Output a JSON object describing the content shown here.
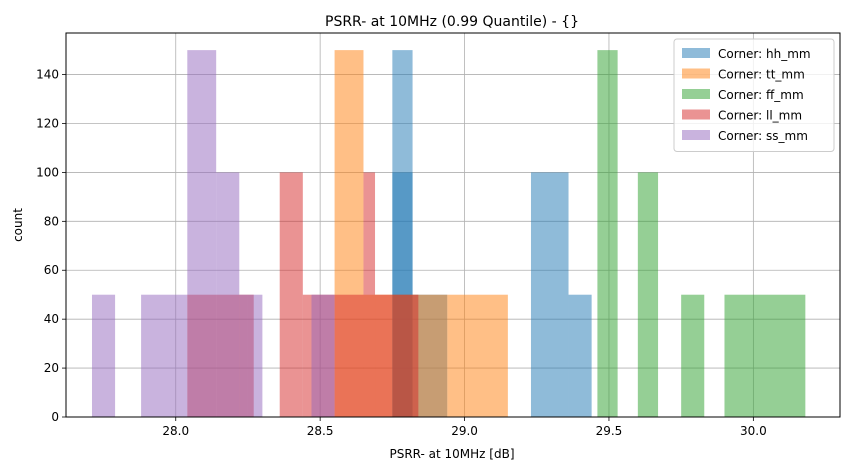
{
  "chart_data": {
    "type": "bar",
    "title": "PSRR- at 10MHz (0.99 Quantile) - {}",
    "xlabel": "PSRR- at 10MHz [dB]",
    "ylabel": "count",
    "xlim": [
      27.62,
      30.3
    ],
    "ylim": [
      0,
      157
    ],
    "xticks": [
      "28.0",
      "28.5",
      "29.0",
      "29.5",
      "30.0"
    ],
    "xtick_values": [
      28.0,
      28.5,
      29.0,
      29.5,
      30.0
    ],
    "yticks": [
      "0",
      "20",
      "40",
      "60",
      "80",
      "100",
      "120",
      "140"
    ],
    "ytick_values": [
      0,
      20,
      40,
      60,
      80,
      100,
      120,
      140
    ],
    "grid": true,
    "legend_position": "top-right",
    "series": [
      {
        "name": "Corner: hh_mm",
        "color": "#1f77b4",
        "bars": [
          {
            "x0": 28.75,
            "x1": 28.82,
            "y": 150
          },
          {
            "x0": 28.75,
            "x1": 28.82,
            "y": 100
          },
          {
            "x0": 28.75,
            "x1": 28.82,
            "y": 50
          },
          {
            "x0": 28.82,
            "x1": 28.94,
            "y": 50
          },
          {
            "x0": 29.23,
            "x1": 29.36,
            "y": 100
          },
          {
            "x0": 29.36,
            "x1": 29.44,
            "y": 50
          }
        ]
      },
      {
        "name": "Corner: tt_mm",
        "color": "#ff7f0e",
        "bars": [
          {
            "x0": 28.55,
            "x1": 28.65,
            "y": 150
          },
          {
            "x0": 28.65,
            "x1": 28.75,
            "y": 50
          },
          {
            "x0": 28.75,
            "x1": 28.94,
            "y": 50
          },
          {
            "x0": 28.94,
            "x1": 29.15,
            "y": 50
          }
        ]
      },
      {
        "name": "Corner: ff_mm",
        "color": "#2ca02c",
        "bars": [
          {
            "x0": 29.46,
            "x1": 29.53,
            "y": 150
          },
          {
            "x0": 29.6,
            "x1": 29.67,
            "y": 100
          },
          {
            "x0": 29.75,
            "x1": 29.83,
            "y": 50
          },
          {
            "x0": 29.9,
            "x1": 30.18,
            "y": 50
          }
        ]
      },
      {
        "name": "Corner: ll_mm",
        "color": "#d62728",
        "bars": [
          {
            "x0": 28.36,
            "x1": 28.44,
            "y": 100
          },
          {
            "x0": 28.44,
            "x1": 28.55,
            "y": 50
          },
          {
            "x0": 28.55,
            "x1": 28.65,
            "y": 50
          },
          {
            "x0": 28.65,
            "x1": 28.69,
            "y": 100
          },
          {
            "x0": 28.69,
            "x1": 28.75,
            "y": 50
          },
          {
            "x0": 28.75,
            "x1": 28.84,
            "y": 50
          },
          {
            "x0": 28.04,
            "x1": 28.14,
            "y": 50
          },
          {
            "x0": 28.14,
            "x1": 28.25,
            "y": 50
          },
          {
            "x0": 28.25,
            "x1": 28.27,
            "y": 50
          }
        ]
      },
      {
        "name": "Corner: ss_mm",
        "color": "#9467bd",
        "bars": [
          {
            "x0": 27.71,
            "x1": 27.79,
            "y": 50
          },
          {
            "x0": 27.88,
            "x1": 28.04,
            "y": 50
          },
          {
            "x0": 28.04,
            "x1": 28.14,
            "y": 150
          },
          {
            "x0": 28.14,
            "x1": 28.22,
            "y": 100
          },
          {
            "x0": 28.22,
            "x1": 28.3,
            "y": 50
          },
          {
            "x0": 28.47,
            "x1": 28.55,
            "y": 50
          }
        ]
      }
    ]
  }
}
